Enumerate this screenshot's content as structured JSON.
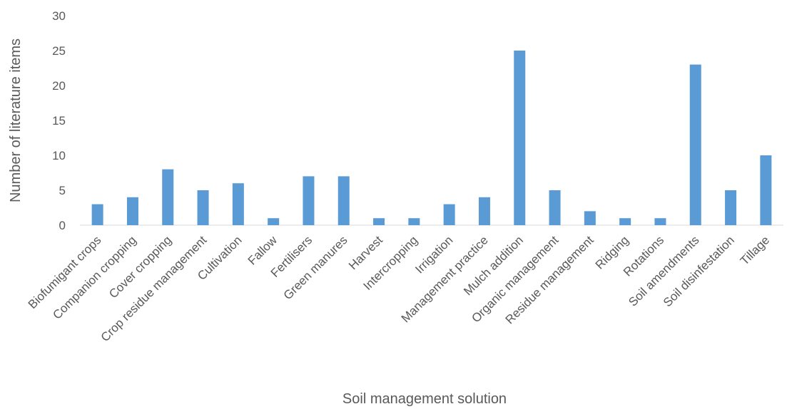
{
  "chart_data": {
    "type": "bar",
    "title": "",
    "xlabel": "Soil management solution",
    "ylabel": "Number of literature items",
    "ylim": [
      0,
      30
    ],
    "yticks": [
      0,
      5,
      10,
      15,
      20,
      25,
      30
    ],
    "grid": false,
    "legend": "none",
    "bar_color": "#5B9BD5",
    "categories": [
      "Biofumigant crops",
      "Companion cropping",
      "Cover cropping",
      "Crop residue management",
      "Cultivation",
      "Fallow",
      "Fertilisers",
      "Green manures",
      "Harvest",
      "Intercropping",
      "Irrigation",
      "Management practice",
      "Mulch addition",
      "Organic management",
      "Residue management",
      "Ridging",
      "Rotations",
      "Soil amendments",
      "Soil disinfestation",
      "Tillage"
    ],
    "values": [
      3,
      4,
      8,
      5,
      6,
      1,
      7,
      7,
      1,
      1,
      3,
      4,
      25,
      5,
      2,
      1,
      1,
      23,
      5,
      10
    ]
  }
}
